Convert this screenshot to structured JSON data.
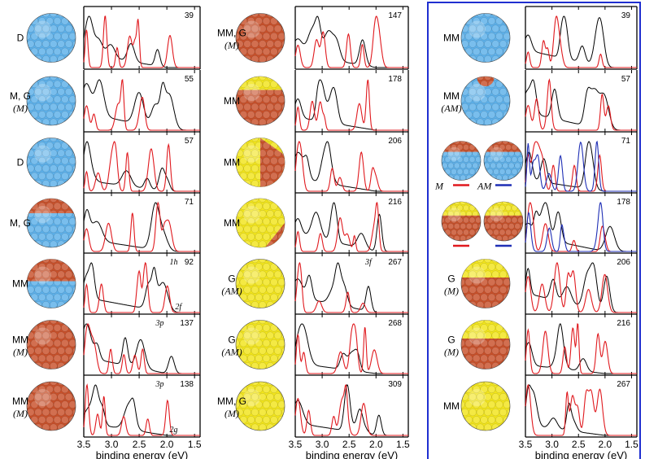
{
  "colors": {
    "experiment": "#000000",
    "theory_m": "#e0191e",
    "theory_am": "#1f2fb5",
    "frame": "#1f2fd0",
    "sodium": "#5cb0ea",
    "copper": "#c8502a",
    "gold": "#f2e51a"
  },
  "axis": {
    "xlabel": "binding energy (eV)",
    "ticks": [
      "3.5",
      "3.0",
      "2.5",
      "2.0",
      "1.5"
    ]
  },
  "chart_data": {
    "type": "line",
    "xlabel": "binding energy (eV)",
    "x_range": [
      3.5,
      1.4
    ],
    "columns": [
      {
        "panels": [
          {
            "size": "39",
            "label": "D",
            "sub": "",
            "sphere": "sodium",
            "lines": [
              "red"
            ],
            "peaks": []
          },
          {
            "size": "55",
            "label": "M, G",
            "sub": "(M)",
            "sphere": "sodium",
            "lines": [
              "red"
            ],
            "peaks": []
          },
          {
            "size": "57",
            "label": "D",
            "sub": "",
            "sphere": "sodium",
            "lines": [
              "red"
            ],
            "peaks": []
          },
          {
            "size": "71",
            "label": "M, G",
            "sub": "",
            "sphere": "sodium_cap",
            "lines": [
              "red"
            ],
            "peaks": []
          },
          {
            "size": "92",
            "label": "MM",
            "sub": "",
            "sphere": "sodium_half",
            "lines": [
              "red"
            ],
            "peaks": [
              {
                "text": "1h",
                "x": 1.95
              },
              {
                "text": "2f",
                "x": 1.85
              }
            ]
          },
          {
            "size": "137",
            "label": "MM",
            "sub": "(M)",
            "sphere": "copper",
            "lines": [
              "red"
            ],
            "peaks": [
              {
                "text": "3p",
                "x": 2.2
              }
            ]
          },
          {
            "size": "138",
            "label": "MM",
            "sub": "(M)",
            "sphere": "copper",
            "lines": [
              "red"
            ],
            "peaks": [
              {
                "text": "3p",
                "x": 2.2
              },
              {
                "text": "2g",
                "x": 1.95
              }
            ]
          }
        ]
      },
      {
        "panels": [
          {
            "size": "147",
            "label": "MM, G",
            "sub": "(M)",
            "sphere": "copper",
            "lines": [
              "red"
            ],
            "peaks": []
          },
          {
            "size": "178",
            "label": "MM",
            "sub": "",
            "sphere": "copper_cap",
            "lines": [
              "red"
            ],
            "peaks": []
          },
          {
            "size": "206",
            "label": "MM",
            "sub": "",
            "sphere": "gold_wedge",
            "lines": [
              "red"
            ],
            "peaks": []
          },
          {
            "size": "216",
            "label": "MM",
            "sub": "",
            "sphere": "gold_side",
            "lines": [
              "red"
            ],
            "peaks": []
          },
          {
            "size": "267",
            "label": "G",
            "sub": "(AM)",
            "sphere": "gold",
            "lines": [
              "red"
            ],
            "peaks": [
              {
                "text": "3f",
                "x": 2.2
              }
            ]
          },
          {
            "size": "268",
            "label": "G",
            "sub": "(AM)",
            "sphere": "gold",
            "lines": [
              "red"
            ],
            "peaks": []
          },
          {
            "size": "309",
            "label": "MM, G",
            "sub": "(M)",
            "sphere": "gold",
            "lines": [
              "red"
            ],
            "peaks": []
          }
        ]
      },
      {
        "panels": [
          {
            "size": "39",
            "label": "MM",
            "sub": "",
            "sphere": "sodium",
            "lines": [
              "red"
            ],
            "peaks": []
          },
          {
            "size": "57",
            "label": "MM",
            "sub": "(AM)",
            "sphere": "sodium_top",
            "lines": [
              "red"
            ],
            "peaks": []
          },
          {
            "size": "71",
            "label": "",
            "sub": "",
            "sphere": "pair_sodium",
            "lines": [
              "red",
              "blue"
            ],
            "peaks": []
          },
          {
            "size": "178",
            "label": "",
            "sub": "",
            "sphere": "pair_copper",
            "lines": [
              "red",
              "blue"
            ],
            "peaks": []
          },
          {
            "size": "206",
            "label": "G",
            "sub": "(M)",
            "sphere": "copper_gold",
            "lines": [
              "red"
            ],
            "peaks": []
          },
          {
            "size": "216",
            "label": "G",
            "sub": "(M)",
            "sphere": "copper_gold",
            "lines": [
              "red"
            ],
            "peaks": []
          },
          {
            "size": "267",
            "label": "MM",
            "sub": "",
            "sphere": "gold",
            "lines": [
              "red"
            ],
            "peaks": []
          }
        ]
      }
    ],
    "legend": {
      "m": "M",
      "am": "AM"
    }
  }
}
